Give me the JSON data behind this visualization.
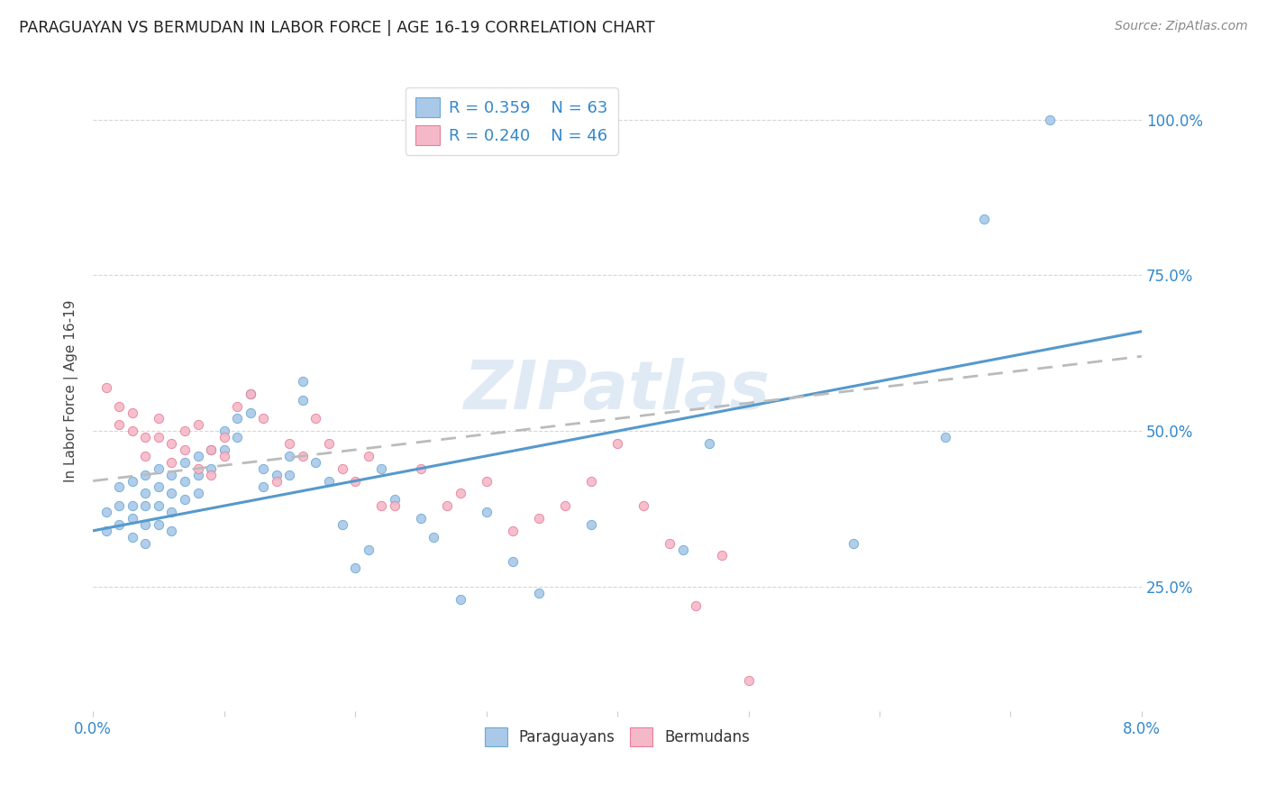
{
  "title": "PARAGUAYAN VS BERMUDAN IN LABOR FORCE | AGE 16-19 CORRELATION CHART",
  "source": "Source: ZipAtlas.com",
  "ylabel": "In Labor Force | Age 16-19",
  "xlim": [
    0.0,
    0.08
  ],
  "ylim": [
    0.05,
    1.08
  ],
  "xticks": [
    0.0,
    0.01,
    0.02,
    0.03,
    0.04,
    0.05,
    0.06,
    0.07,
    0.08
  ],
  "yticks": [
    0.25,
    0.5,
    0.75,
    1.0
  ],
  "ytick_labels": [
    "25.0%",
    "50.0%",
    "75.0%",
    "100.0%"
  ],
  "xtick_labels": [
    "0.0%",
    "",
    "",
    "",
    "",
    "",
    "",
    "",
    "8.0%"
  ],
  "paraguayan_color": "#aac8e8",
  "bermudan_color": "#f5b8c8",
  "paraguayan_edge_color": "#6aaad4",
  "bermudan_edge_color": "#e8809a",
  "paraguayan_line_color": "#5599cc",
  "bermudan_line_color": "#bbbbbb",
  "watermark": "ZIPatlas",
  "legend_r_paraguayan": "R = 0.359",
  "legend_n_paraguayan": "N = 63",
  "legend_r_bermudan": "R = 0.240",
  "legend_n_bermudan": "N = 46",
  "paraguayan_trend_x": [
    0.0,
    0.08
  ],
  "paraguayan_trend_y": [
    0.34,
    0.66
  ],
  "bermudan_trend_x": [
    0.0,
    0.08
  ],
  "bermudan_trend_y": [
    0.42,
    0.62
  ],
  "paraguayan_scatter_x": [
    0.001,
    0.001,
    0.002,
    0.002,
    0.002,
    0.003,
    0.003,
    0.003,
    0.003,
    0.004,
    0.004,
    0.004,
    0.004,
    0.004,
    0.005,
    0.005,
    0.005,
    0.005,
    0.006,
    0.006,
    0.006,
    0.006,
    0.007,
    0.007,
    0.007,
    0.008,
    0.008,
    0.008,
    0.009,
    0.009,
    0.01,
    0.01,
    0.011,
    0.011,
    0.012,
    0.012,
    0.013,
    0.013,
    0.014,
    0.015,
    0.015,
    0.016,
    0.016,
    0.017,
    0.018,
    0.019,
    0.02,
    0.021,
    0.022,
    0.023,
    0.025,
    0.026,
    0.028,
    0.03,
    0.032,
    0.034,
    0.038,
    0.045,
    0.047,
    0.058,
    0.065,
    0.068,
    0.073
  ],
  "paraguayan_scatter_y": [
    0.37,
    0.34,
    0.41,
    0.38,
    0.35,
    0.42,
    0.38,
    0.36,
    0.33,
    0.43,
    0.4,
    0.38,
    0.35,
    0.32,
    0.44,
    0.41,
    0.38,
    0.35,
    0.43,
    0.4,
    0.37,
    0.34,
    0.45,
    0.42,
    0.39,
    0.46,
    0.43,
    0.4,
    0.47,
    0.44,
    0.5,
    0.47,
    0.52,
    0.49,
    0.56,
    0.53,
    0.44,
    0.41,
    0.43,
    0.46,
    0.43,
    0.58,
    0.55,
    0.45,
    0.42,
    0.35,
    0.28,
    0.31,
    0.44,
    0.39,
    0.36,
    0.33,
    0.23,
    0.37,
    0.29,
    0.24,
    0.35,
    0.31,
    0.48,
    0.32,
    0.49,
    0.84,
    1.0
  ],
  "bermudan_scatter_x": [
    0.001,
    0.002,
    0.002,
    0.003,
    0.003,
    0.004,
    0.004,
    0.005,
    0.005,
    0.006,
    0.006,
    0.007,
    0.007,
    0.008,
    0.008,
    0.009,
    0.009,
    0.01,
    0.01,
    0.011,
    0.012,
    0.013,
    0.014,
    0.015,
    0.016,
    0.017,
    0.018,
    0.019,
    0.02,
    0.021,
    0.022,
    0.023,
    0.025,
    0.027,
    0.028,
    0.03,
    0.032,
    0.034,
    0.036,
    0.038,
    0.04,
    0.042,
    0.044,
    0.046,
    0.048,
    0.05
  ],
  "bermudan_scatter_y": [
    0.57,
    0.54,
    0.51,
    0.53,
    0.5,
    0.49,
    0.46,
    0.52,
    0.49,
    0.48,
    0.45,
    0.5,
    0.47,
    0.51,
    0.44,
    0.47,
    0.43,
    0.49,
    0.46,
    0.54,
    0.56,
    0.52,
    0.42,
    0.48,
    0.46,
    0.52,
    0.48,
    0.44,
    0.42,
    0.46,
    0.38,
    0.38,
    0.44,
    0.38,
    0.4,
    0.42,
    0.34,
    0.36,
    0.38,
    0.42,
    0.48,
    0.38,
    0.32,
    0.22,
    0.3,
    0.1
  ]
}
